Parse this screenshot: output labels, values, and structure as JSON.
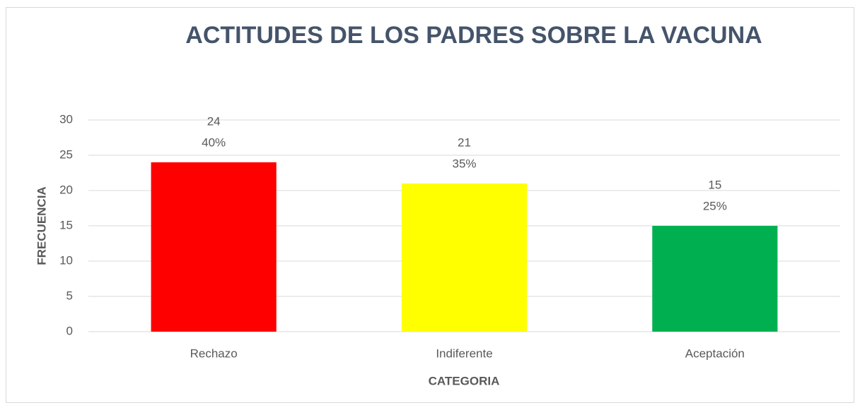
{
  "chart_data": {
    "type": "bar",
    "title": "ACTITUDES DE LOS PADRES SOBRE LA VACUNA",
    "x_label": "CATEGORIA",
    "y_label": "FRECUENCIA",
    "categories": [
      "Rechazo",
      "Indiferente",
      "Aceptación"
    ],
    "values": [
      24,
      21,
      15
    ],
    "percent_labels": [
      "40%",
      "35%",
      "25%"
    ],
    "colors": [
      "#ff0000",
      "#ffff00",
      "#00b050"
    ],
    "ylim": [
      0,
      30
    ],
    "yticks": [
      0,
      5,
      10,
      15,
      20,
      25,
      30
    ],
    "grid": true
  }
}
